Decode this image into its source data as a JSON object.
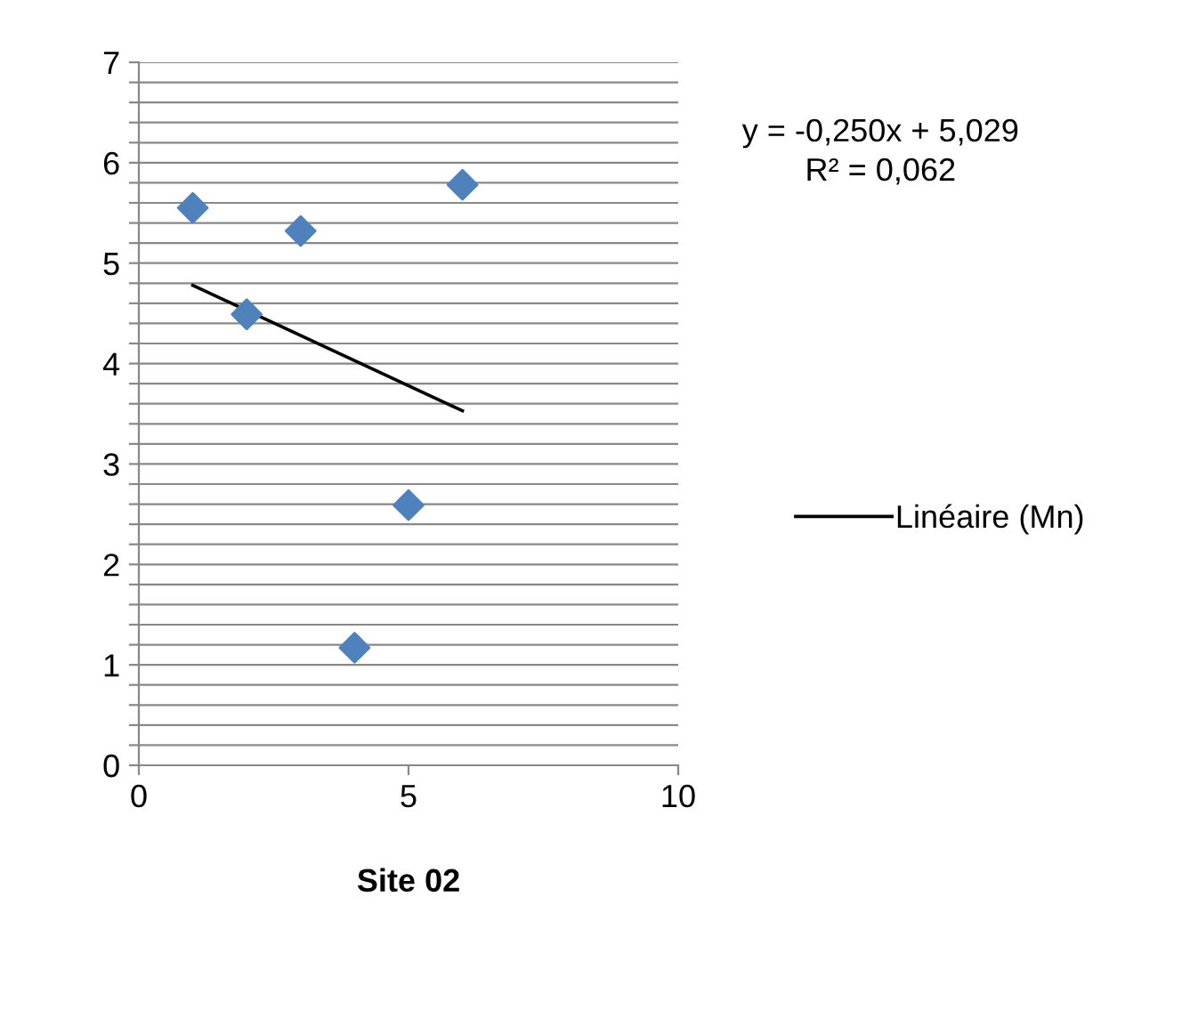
{
  "chart_data": {
    "type": "scatter",
    "xlabel": "Site 02",
    "annotations": [
      "y = -0,250x + 5,029\nR² = 0,062"
    ],
    "series": [
      {
        "color": "#4f81bd",
        "marker": "diamond",
        "x": [
          1,
          2,
          3,
          4,
          5,
          6
        ],
        "values": [
          5.55,
          4.49,
          5.32,
          1.17,
          2.59,
          5.78
        ]
      },
      {
        "type": "line",
        "name": "Linéaire (Mn)",
        "color": "#000000",
        "marker": "none",
        "line_style": "solid",
        "x": [
          1,
          6
        ],
        "values": [
          4.78,
          3.53
        ]
      }
    ],
    "xlim": [
      0,
      10
    ],
    "xticks": [
      0,
      5,
      10
    ],
    "ylim": [
      0,
      7
    ],
    "yticks": [
      0,
      {
        "value": 0.2,
        "label": null
      },
      {
        "value": 0.4,
        "label": null
      },
      {
        "value": 0.6,
        "label": null
      },
      {
        "value": 0.8,
        "label": null
      },
      1,
      {
        "value": 1.2,
        "label": null
      },
      {
        "value": 1.4,
        "label": null
      },
      {
        "value": 1.6,
        "label": null
      },
      {
        "value": 1.8,
        "label": null
      },
      2,
      {
        "value": 2.2,
        "label": null
      },
      {
        "value": 2.4,
        "label": null
      },
      {
        "value": 2.6,
        "label": null
      },
      {
        "value": 2.8,
        "label": null
      },
      3,
      {
        "value": 3.2,
        "label": null
      },
      {
        "value": 3.4,
        "label": null
      },
      {
        "value": 3.6,
        "label": null
      },
      {
        "value": 3.8,
        "label": null
      },
      4,
      {
        "value": 4.2,
        "label": null
      },
      {
        "value": 4.4,
        "label": null
      },
      {
        "value": 4.6,
        "label": null
      },
      {
        "value": 4.8,
        "label": null
      },
      5,
      {
        "value": 5.2,
        "label": null
      },
      {
        "value": 5.4,
        "label": null
      },
      {
        "value": 5.6,
        "label": null
      },
      {
        "value": 5.8,
        "label": null
      },
      6,
      {
        "value": 6.2,
        "label": null
      },
      {
        "value": 6.4,
        "label": null
      },
      {
        "value": 6.6,
        "label": null
      },
      {
        "value": 6.8,
        "label": null
      },
      7
    ],
    "grid": "y",
    "legend": "right"
  }
}
